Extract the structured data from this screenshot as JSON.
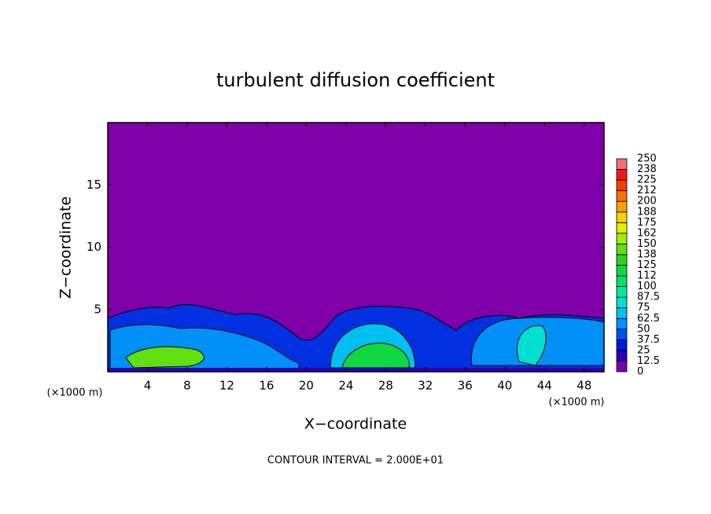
{
  "chart_data": {
    "type": "contour",
    "title": "turbulent diffusion coefficient",
    "xlabel": "X−coordinate",
    "ylabel": "Z−coordinate",
    "x_unit_labels": [
      "(×1000 m)",
      "(×1000 m)"
    ],
    "footnote": "CONTOUR INTERVAL = 2.000E+01",
    "background_color": "#7f00a9",
    "xlim": [
      0,
      50
    ],
    "xticks": [
      4,
      8,
      12,
      16,
      20,
      24,
      28,
      32,
      36,
      40,
      44,
      48
    ],
    "ylim": [
      0,
      20
    ],
    "yticks": [
      5,
      10,
      15
    ],
    "colorbar": {
      "levels": [
        0,
        12.5,
        25,
        37.5,
        50,
        62.5,
        75,
        87.5,
        100,
        {
          "value": 112.5,
          "label": "112"
        },
        125,
        {
          "value": 137.5,
          "label": "138"
        },
        150,
        {
          "value": 162.5,
          "label": "162"
        },
        175,
        {
          "value": 187.5,
          "label": "188"
        },
        200,
        {
          "value": 212.5,
          "label": "212"
        },
        225,
        {
          "value": 237.5,
          "label": "238"
        },
        250
      ],
      "colors": [
        "#7f00a9",
        "#2a00b8",
        "#0018d8",
        "#0050f0",
        "#0090f8",
        "#00c0f0",
        "#00e0d0",
        "#00e8a0",
        "#00e070",
        "#10d840",
        "#30d020",
        "#60e010",
        "#a0f000",
        "#e0f000",
        "#f8d000",
        "#f8a000",
        "#f87000",
        "#f04000",
        "#f01818",
        "#f07080"
      ]
    }
  }
}
